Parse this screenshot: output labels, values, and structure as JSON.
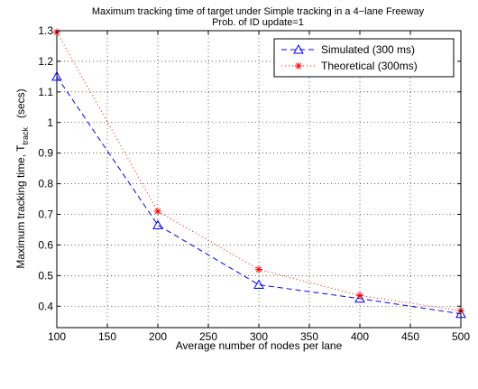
{
  "chart_data": {
    "type": "line",
    "title": "Maximum tracking time of target under Simple tracking in a 4−lane Freeway",
    "subtitle": "Prob. of ID update=1",
    "xlabel": "Average number of nodes per lane",
    "ylabel": "Maximum tracking time, T",
    "ylabel_subscript": "track",
    "ylabel_suffix": "(secs)",
    "xlim": [
      100,
      500
    ],
    "ylim": [
      0.33,
      1.3
    ],
    "xticks": [
      100,
      150,
      200,
      250,
      300,
      350,
      400,
      450,
      500
    ],
    "yticks": [
      0.4,
      0.5,
      0.6,
      0.7,
      0.8,
      0.9,
      1,
      1.1,
      1.2,
      1.3
    ],
    "ytick_labels": [
      "0.4",
      "0.5",
      "0.6",
      "0.7",
      "0.8",
      "0.9",
      "1",
      "1.1",
      "1.2",
      "1.3"
    ],
    "grid": true,
    "legend_position": "top-right",
    "series": [
      {
        "name": "Simulated (300 ms)",
        "color": "#0000ff",
        "marker": "triangle",
        "line_style": "dashed",
        "x": [
          100,
          200,
          300,
          400,
          500
        ],
        "y": [
          1.15,
          0.665,
          0.47,
          0.425,
          0.375
        ]
      },
      {
        "name": "Theoretical (300ms)",
        "color": "#ff0000",
        "marker": "asterisk",
        "line_style": "dotted",
        "x": [
          100,
          200,
          300,
          400,
          500
        ],
        "y": [
          1.295,
          0.71,
          0.52,
          0.435,
          0.385
        ]
      }
    ]
  }
}
